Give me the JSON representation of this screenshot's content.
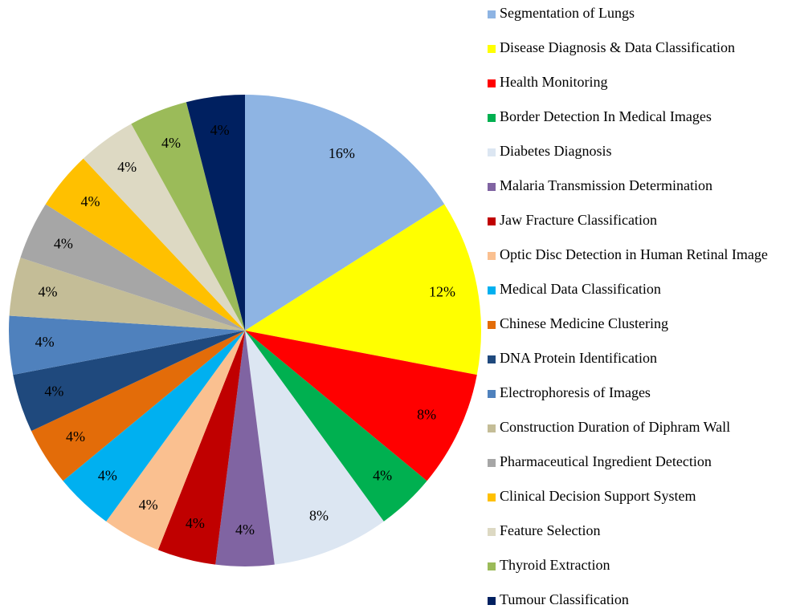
{
  "chart_data": {
    "type": "pie",
    "categories": [
      "Segmentation of Lungs",
      "Disease Diagnosis & Data Classification",
      "Health Monitoring",
      "Border Detection In Medical Images",
      "Diabetes Diagnosis",
      "Malaria Transmission Determination",
      "Jaw Fracture Classification",
      "Optic Disc Detection in Human Retinal Image",
      "Medical Data Classification",
      "Chinese Medicine Clustering",
      "DNA Protein Identification",
      "Electrophoresis of Images",
      "Construction Duration of Diphram Wall",
      "Pharmaceutical Ingredient Detection",
      "Clinical Decision Support System",
      "Feature Selection",
      "Thyroid Extraction",
      "Tumour Classification"
    ],
    "values": [
      16,
      12,
      8,
      4,
      8,
      4,
      4,
      4,
      4,
      4,
      4,
      4,
      4,
      4,
      4,
      4,
      4,
      4
    ],
    "value_labels": [
      "16%",
      "12%",
      "8%",
      "4%",
      "8%",
      "4%",
      "4%",
      "4%",
      "4%",
      "4%",
      "4%",
      "4%",
      "4%",
      "4%",
      "4%",
      "4%",
      "4%",
      "4%"
    ],
    "colors": [
      "#8eb4e3",
      "#ffff00",
      "#ff0000",
      "#00b050",
      "#dce6f2",
      "#8064a2",
      "#c00000",
      "#fac090",
      "#00b0f0",
      "#e36c09",
      "#1f497d",
      "#4f81bd",
      "#c4bd97",
      "#a6a6a6",
      "#ffc000",
      "#ddd9c3",
      "#9bbb59",
      "#002060"
    ],
    "legend": "right"
  }
}
